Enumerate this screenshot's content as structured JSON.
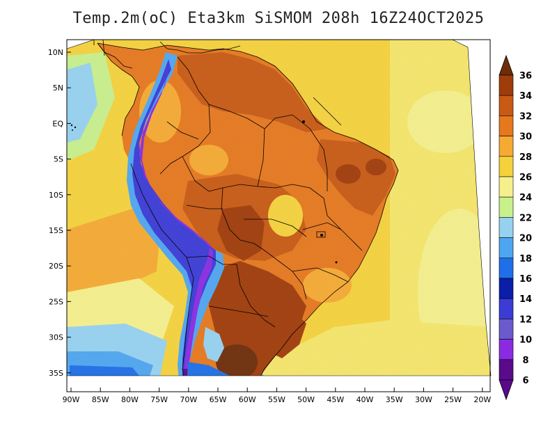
{
  "title": "Temp.2m(oC) Eta3km SiSMOM 208h 16Z24OCT2025",
  "axes": {
    "lat_labels": [
      "10N",
      "5N",
      "EQ",
      "5S",
      "10S",
      "15S",
      "20S",
      "25S",
      "30S",
      "35S"
    ],
    "lon_labels": [
      "90W",
      "85W",
      "80W",
      "75W",
      "70W",
      "65W",
      "60W",
      "55W",
      "50W",
      "45W",
      "40W",
      "35W",
      "30W",
      "25W",
      "20W"
    ]
  },
  "colorbar": {
    "labels": [
      "36",
      "34",
      "32",
      "30",
      "28",
      "26",
      "24",
      "22",
      "20",
      "18",
      "16",
      "14",
      "12",
      "10",
      "8",
      "6"
    ],
    "colors": {
      "c6": "#5a0a8a",
      "c8": "#8a2be2",
      "c10": "#6a5acd",
      "c12": "#3b3bd6",
      "c14": "#0a1ea8",
      "c16": "#1e6fe8",
      "c18": "#4fa6f0",
      "c20": "#96d2f0",
      "c22": "#c8f08c",
      "c24": "#f5f08c",
      "c26": "#f5d23c",
      "c28": "#f5aa32",
      "c30": "#e6781e",
      "c32": "#c85a14",
      "c34": "#a03c0a",
      "c36": "#6e2d0a"
    }
  },
  "legend": {
    "unit": "oC"
  }
}
